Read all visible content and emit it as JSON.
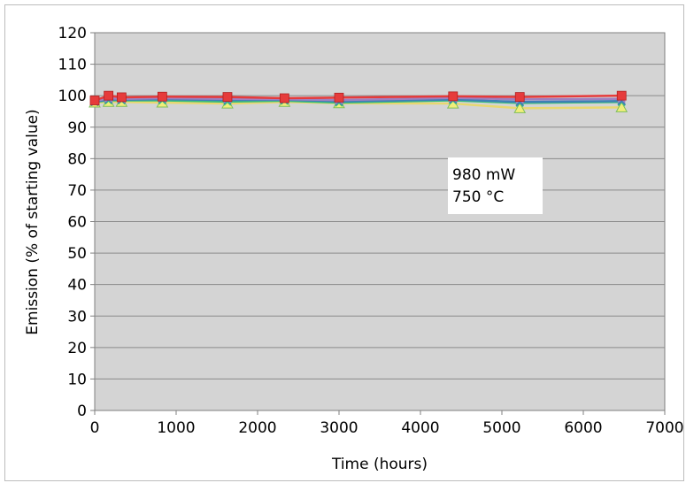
{
  "chart_data": {
    "type": "line",
    "title": "",
    "xlabel": "Time (hours)",
    "ylabel": "Emission (% of starting value)",
    "xlim": [
      0,
      7000
    ],
    "ylim": [
      0,
      120
    ],
    "x_ticks": [
      "0",
      "1000",
      "2000",
      "3000",
      "4000",
      "5000",
      "6000",
      "7000"
    ],
    "y_ticks": [
      "0",
      "10",
      "20",
      "30",
      "40",
      "50",
      "60",
      "70",
      "80",
      "90",
      "100",
      "110",
      "120"
    ],
    "grid": "horizontal",
    "plot_background": "#d4d4d4",
    "annotation": {
      "line1": "980 mW",
      "line2": "750 °C"
    },
    "x": [
      0,
      170,
      330,
      830,
      1630,
      2330,
      3000,
      4400,
      5220,
      6470
    ],
    "series": [
      {
        "color": "#e63b3b",
        "marker": "square",
        "values": [
          98.5,
          100.0,
          99.5,
          99.7,
          99.6,
          99.2,
          99.4,
          99.8,
          99.6,
          100.0
        ]
      },
      {
        "color": "#9e7fc0",
        "marker": "x",
        "values": [
          98.3,
          99.2,
          99.0,
          99.2,
          99.0,
          98.9,
          98.6,
          99.3,
          98.8,
          99.0
        ]
      },
      {
        "color": "#3f7fb6",
        "marker": "x",
        "values": [
          98.0,
          98.8,
          98.7,
          98.9,
          98.6,
          98.7,
          98.2,
          98.8,
          98.0,
          98.3
        ]
      },
      {
        "color": "#3cbf7a",
        "marker": "x",
        "values": [
          98.0,
          98.5,
          98.5,
          98.5,
          98.1,
          98.4,
          97.8,
          98.5,
          97.7,
          98.0
        ]
      },
      {
        "color": "#e8d870",
        "marker": "triangle",
        "values": [
          97.8,
          98.0,
          98.0,
          97.8,
          97.5,
          98.0,
          97.6,
          97.5,
          96.0,
          96.3
        ]
      }
    ]
  }
}
